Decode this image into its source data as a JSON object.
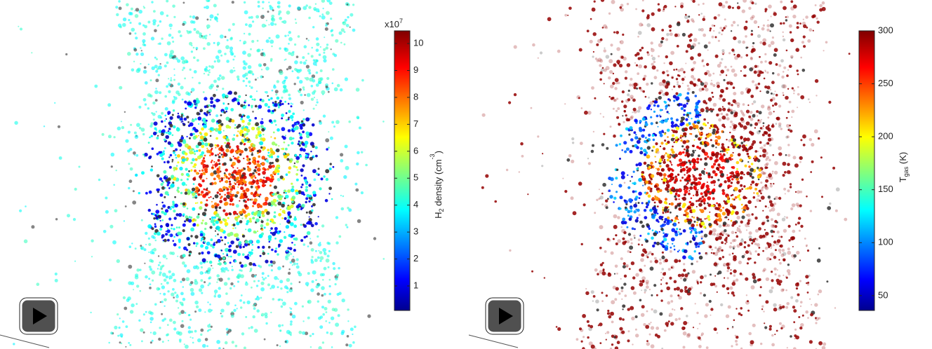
{
  "panels": [
    {
      "colorbar": {
        "exponent_base": "x10",
        "exponent_power": "7",
        "label_parts": [
          "H",
          "2",
          " density (cm",
          "-3",
          ")"
        ],
        "lim": [
          0.09,
          10.47
        ],
        "ticks": [
          1,
          2,
          3,
          4,
          5,
          6,
          7,
          8,
          9,
          10
        ]
      }
    },
    {
      "colorbar": {
        "label_parts": [
          "T",
          "gas",
          " (K)"
        ],
        "lim": [
          36,
          300
        ],
        "ticks": [
          50,
          100,
          150,
          200,
          250,
          300
        ]
      }
    }
  ]
}
